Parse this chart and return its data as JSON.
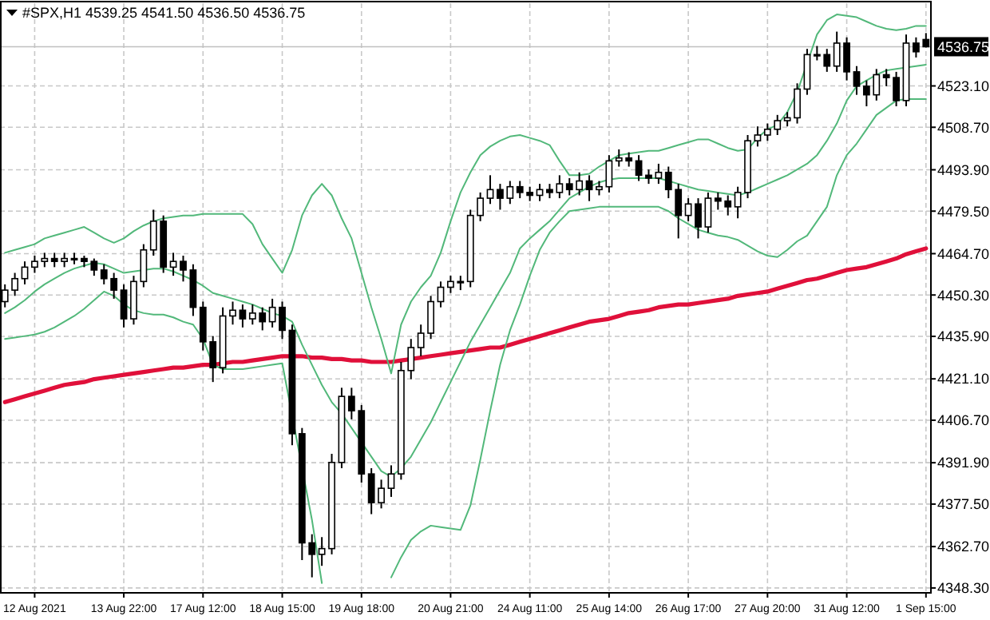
{
  "chart_data": {
    "type": "candlestick",
    "title": "#SPX,H1  4539.25 4541.50 4536.50 4536.75",
    "categories": [
      null,
      null,
      null,
      "12 Aug 2021",
      null,
      null,
      null,
      null,
      null,
      null,
      null,
      null,
      "13 Aug 22:00",
      null,
      null,
      null,
      null,
      null,
      null,
      null,
      "17 Aug 12:00",
      null,
      null,
      null,
      null,
      null,
      null,
      null,
      "18 Aug 15:00",
      null,
      null,
      null,
      null,
      null,
      null,
      null,
      "19 Aug 18:00",
      null,
      null,
      null,
      null,
      null,
      null,
      null,
      null,
      "20 Aug 21:00",
      null,
      null,
      null,
      null,
      null,
      null,
      null,
      "24 Aug 11:00",
      null,
      null,
      null,
      null,
      null,
      null,
      null,
      "25 Aug 14:00",
      null,
      null,
      null,
      null,
      null,
      null,
      null,
      "26 Aug 17:00",
      null,
      null,
      null,
      null,
      null,
      null,
      null,
      "27 Aug 20:00",
      null,
      null,
      null,
      null,
      null,
      null,
      null,
      "31 Aug 12:00",
      null,
      null,
      null,
      null,
      null,
      null,
      null,
      "1 Sep 15:00"
    ],
    "ylim": [
      4346.6,
      4551.9
    ],
    "yticks": [
      {
        "value": 4348.3,
        "label": "4348.30"
      },
      {
        "value": 4362.7,
        "label": "4362.70"
      },
      {
        "value": 4377.5,
        "label": "4377.50"
      },
      {
        "value": 4391.9,
        "label": "4391.90"
      },
      {
        "value": 4406.7,
        "label": "4406.70"
      },
      {
        "value": 4421.1,
        "label": "4421.10"
      },
      {
        "value": 4435.9,
        "label": "4435.90"
      },
      {
        "value": 4450.3,
        "label": "4450.30"
      },
      {
        "value": 4464.7,
        "label": "4464.70"
      },
      {
        "value": 4479.5,
        "label": "4479.50"
      },
      {
        "value": 4493.9,
        "label": "4493.90"
      },
      {
        "value": 4508.7,
        "label": "4508.70"
      },
      {
        "value": 4523.1,
        "label": "4523.10"
      }
    ],
    "grid": true,
    "ref_lines": [
      {
        "axis": "y",
        "value": 4536.75,
        "label": "4536.75",
        "color": "#c0c0c0"
      }
    ],
    "series": [
      {
        "type": "line",
        "color": "#e0103a",
        "values": [
          4413,
          4414,
          4415,
          4416,
          4417,
          4418,
          4419,
          4419.5,
          4420,
          4421,
          4421.5,
          4422,
          4422.5,
          4423,
          4423.5,
          4424,
          4424.5,
          4425,
          4425,
          4425.5,
          4426,
          4426,
          4426.5,
          4427,
          4427,
          4427.5,
          4428,
          4428.5,
          4429,
          4429,
          4429,
          4428.5,
          4428.5,
          4428,
          4428,
          4427.5,
          4427.5,
          4427,
          4427,
          4427,
          4427.5,
          4428,
          4428.5,
          4429,
          4429.5,
          4430,
          4430.5,
          4431,
          4431.5,
          4432,
          4432,
          4433,
          4434,
          4435,
          4436,
          4437,
          4438,
          4439,
          4440,
          4441,
          4441.5,
          4442,
          4443,
          4444,
          4444.5,
          4445,
          4446,
          4446.5,
          4447,
          4447,
          4447.5,
          4448,
          4448.5,
          4449,
          4450,
          4450.5,
          4451,
          4451.5,
          4452.5,
          4453.5,
          4454.5,
          4455.5,
          4456,
          4457,
          4458,
          4459,
          4459.5,
          4460,
          4461,
          4462,
          4463,
          4464.5,
          4465.5,
          4466.5
        ]
      },
      {
        "type": "line",
        "color": "#52b87a",
        "values": [
          4465,
          4466,
          4467,
          4468,
          4470,
          4471,
          4472,
          4473,
          4474,
          4472,
          4470,
          4468.5,
          4470,
          4472.5,
          4474.5,
          4476,
          4477,
          4477.5,
          4478,
          4478,
          4478.5,
          4478.5,
          4478.5,
          4478.5,
          4478.5,
          4475,
          4468,
          4463,
          4458,
          4466,
          4478,
          4485,
          4489,
          4485,
          4477,
          4470,
          4458,
          4446,
          4435,
          4423,
          4440,
          4448,
          4453,
          4457,
          4465,
          4476,
          4486,
          4493,
          4499,
          4502,
          4504,
          4505.5,
          4506,
          4505,
          4504,
          4502.5,
          4497,
          4492,
          4492,
          4492.5,
          4495,
          4497,
          4499,
          4499.5,
          4500,
          4500.5,
          4500.5,
          4501.5,
          4502.5,
          4503.5,
          4504.5,
          4504.5,
          4503,
          4501.5,
          4500.5,
          4501,
          4505,
          4508,
          4509.5,
          4514,
          4521,
          null,
          4541,
          4546,
          4548,
          4547.5,
          4547,
          4545.5,
          4544,
          4543,
          4542.5,
          4543,
          4544,
          4544
        ]
      },
      {
        "type": "line",
        "color": "#52b87a",
        "values": [
          4444,
          4446,
          4448.5,
          4451.5,
          4454,
          4456,
          4458,
          4459.5,
          4460.5,
          4461.5,
          4461,
          4459.5,
          4458,
          4458.5,
          4459,
          4459.5,
          4459.5,
          4458.5,
          4457,
          4455.5,
          4453.5,
          4451,
          4450,
          4449,
          4448,
          4447,
          4445.5,
          4444,
          4443,
          4441,
          4433,
          4426,
          4419,
          4413,
          4409,
          4404,
          4399,
          4394,
          4389,
          4387,
          4390,
          4394,
          4400,
          4406,
          4413,
          4420,
          4427,
          4434,
          4440,
          4446,
          4452,
          4458,
          4466.5,
          4470,
          4473,
          4476,
          4480,
          4484,
          4486,
          4488,
          4489.5,
          4490.5,
          4491,
          4491,
          4491,
          4491,
          4491,
          4490,
          4489,
          4488,
          4487,
          4486.5,
          4486,
          4485.5,
          4485,
          4486,
          4487.5,
          4489,
          4490.5,
          4492,
          4494,
          4496,
          4499,
          4504,
          4510,
          4518,
          4523,
          4525,
          4527,
          4528.5,
          4529,
          4529.5,
          4530,
          4530.5
        ]
      },
      {
        "type": "line",
        "color": "#52b87a",
        "values": [
          4435,
          4435.5,
          4436,
          4436.5,
          4437.5,
          4439,
          4441,
          4443,
          4445.5,
          4448.5,
          4451.5,
          4450,
          4447,
          4445,
          4444,
          4443.5,
          4443.5,
          4442.5,
          4441,
          4440,
          4435,
          4426,
          4424.5,
          4424.5,
          4424.5,
          4425,
          4425.5,
          4426,
          4426.5,
          null,
          null,
          4372,
          4350,
          null,
          null,
          null,
          null,
          null,
          null,
          4352,
          4359,
          4365,
          4368,
          4370,
          4369.5,
          4369,
          4368.5,
          4377,
          4393,
          4410,
          4426,
          4438,
          4447,
          4457,
          4466,
          4472,
          4476,
          4479.5,
          4480,
          4480.5,
          4481,
          4481,
          4481,
          4481,
          4481,
          4481,
          4481,
          4479.5,
          4477,
          4475,
          4473,
          4472,
          4471,
          4470.5,
          4469.5,
          4467.5,
          4465.5,
          4464,
          4463.5,
          4466,
          4469,
          4471,
          4476,
          4481,
          4492,
          4499,
          4503,
          4508,
          4513,
          4515.5,
          4518,
          4518.5,
          4518.5,
          4518.5
        ]
      }
    ],
    "ohlc": [
      [
        4448,
        4454,
        4446,
        4452
      ],
      [
        4452,
        4458,
        4450,
        4456
      ],
      [
        4456,
        4462,
        4454,
        4460
      ],
      [
        4460,
        4464,
        4458,
        4462
      ],
      [
        4462,
        4465,
        4460,
        4463
      ],
      [
        4463,
        4465,
        4460,
        4462
      ],
      [
        4462,
        4465,
        4460,
        4463
      ],
      [
        4463,
        4465,
        4461,
        4463
      ],
      [
        4463,
        4464,
        4460,
        4462
      ],
      [
        4462,
        4463,
        4457,
        4459
      ],
      [
        4459,
        4461,
        4454,
        4456
      ],
      [
        4456,
        4458,
        4449,
        4452
      ],
      [
        4452,
        4454,
        4439,
        4442
      ],
      [
        4442,
        4457,
        4440,
        4455
      ],
      [
        4455,
        4468,
        4453,
        4466
      ],
      [
        4466,
        4480,
        4464,
        4476
      ],
      [
        4476,
        4478,
        4458,
        4460
      ],
      [
        4460,
        4465,
        4457,
        4462
      ],
      [
        4462,
        4464,
        4455,
        4459
      ],
      [
        4459,
        4461,
        4443,
        4446
      ],
      [
        4446,
        4448,
        4431,
        4434
      ],
      [
        4434,
        4436,
        4420,
        4425
      ],
      [
        4425,
        4446,
        4423,
        4443
      ],
      [
        4443,
        4448,
        4440,
        4445
      ],
      [
        4445,
        4447,
        4439,
        4442
      ],
      [
        4442,
        4447,
        4440,
        4444
      ],
      [
        4444,
        4446,
        4438,
        4441
      ],
      [
        4441,
        4449,
        4439,
        4446
      ],
      [
        4446,
        4448,
        4435,
        4438
      ],
      [
        4438,
        4440,
        4398,
        4402
      ],
      [
        4402,
        4404,
        4358,
        4364
      ],
      [
        4364,
        4367,
        4352,
        4360
      ],
      [
        4360,
        4366,
        4356,
        4362
      ],
      [
        4362,
        4395,
        4360,
        4392
      ],
      [
        4392,
        4418,
        4390,
        4415
      ],
      [
        4415,
        4418,
        4407,
        4410
      ],
      [
        4410,
        4412,
        4385,
        4388
      ],
      [
        4388,
        4390,
        4374,
        4378
      ],
      [
        4378,
        4386,
        4376,
        4383
      ],
      [
        4383,
        4391,
        4380,
        4388
      ],
      [
        4388,
        4427,
        4386,
        4424
      ],
      [
        4424,
        4435,
        4421,
        4432
      ],
      [
        4432,
        4440,
        4429,
        4437
      ],
      [
        4437,
        4450,
        4435,
        4448
      ],
      [
        4448,
        4455,
        4446,
        4453
      ],
      [
        4453,
        4457,
        4451,
        4455
      ],
      [
        4455,
        4457,
        4452,
        4455
      ],
      [
        4455,
        4480,
        4453,
        4478
      ],
      [
        4478,
        4486,
        4476,
        4484
      ],
      [
        4484,
        4492,
        4482,
        4487
      ],
      [
        4487,
        4489,
        4480,
        4484
      ],
      [
        4484,
        4490,
        4482,
        4488
      ],
      [
        4488,
        4490,
        4484,
        4486
      ],
      [
        4486,
        4488,
        4483,
        4485
      ],
      [
        4485,
        4489,
        4483,
        4487
      ],
      [
        4487,
        4489,
        4484,
        4486
      ],
      [
        4486,
        4492,
        4484,
        4489
      ],
      [
        4489,
        4491,
        4485,
        4487
      ],
      [
        4487,
        4493,
        4485,
        4490
      ],
      [
        4490,
        4492,
        4483,
        4487
      ],
      [
        4487,
        4490,
        4485,
        4488
      ],
      [
        4488,
        4499,
        4486,
        4497
      ],
      [
        4497,
        4501,
        4495,
        4498
      ],
      [
        4498,
        4500,
        4495,
        4497
      ],
      [
        4497,
        4499,
        4490,
        4492
      ],
      [
        4492,
        4494,
        4489,
        4491
      ],
      [
        4491,
        4496,
        4489,
        4493
      ],
      [
        4493,
        4495,
        4484,
        4487
      ],
      [
        4487,
        4489,
        4470,
        4478
      ],
      [
        4478,
        4484,
        4476,
        4482
      ],
      [
        4482,
        4484,
        4470,
        4474
      ],
      [
        4474,
        4486,
        4472,
        4484
      ],
      [
        4484,
        4486,
        4480,
        4483
      ],
      [
        4483,
        4485,
        4478,
        4481
      ],
      [
        4481,
        4488,
        4477,
        4486
      ],
      [
        4486,
        4506,
        4484,
        4504
      ],
      [
        4504,
        4509,
        4502,
        4506
      ],
      [
        4506,
        4510,
        4504,
        4508
      ],
      [
        4508,
        4513,
        4506,
        4511
      ],
      [
        4511,
        4514,
        4509,
        4512
      ],
      [
        4512,
        4524,
        4510,
        4522
      ],
      [
        4522,
        4536,
        4520,
        4534
      ],
      [
        4534,
        4537,
        4532,
        4534
      ],
      [
        4534,
        4536,
        4528,
        4530
      ],
      [
        4530,
        4542,
        4528,
        4538
      ],
      [
        4538,
        4540,
        4525,
        4528
      ],
      [
        4528,
        4530,
        4520,
        4523
      ],
      [
        4523,
        4525,
        4516,
        4520
      ],
      [
        4520,
        4529,
        4518,
        4527
      ],
      [
        4527,
        4529,
        4523,
        4526
      ],
      [
        4526,
        4528,
        4516,
        4518
      ],
      [
        4518,
        4541,
        4516,
        4538
      ],
      [
        4538,
        4540,
        4533,
        4535
      ],
      [
        4539.25,
        4541.5,
        4536.5,
        4536.75
      ]
    ]
  }
}
